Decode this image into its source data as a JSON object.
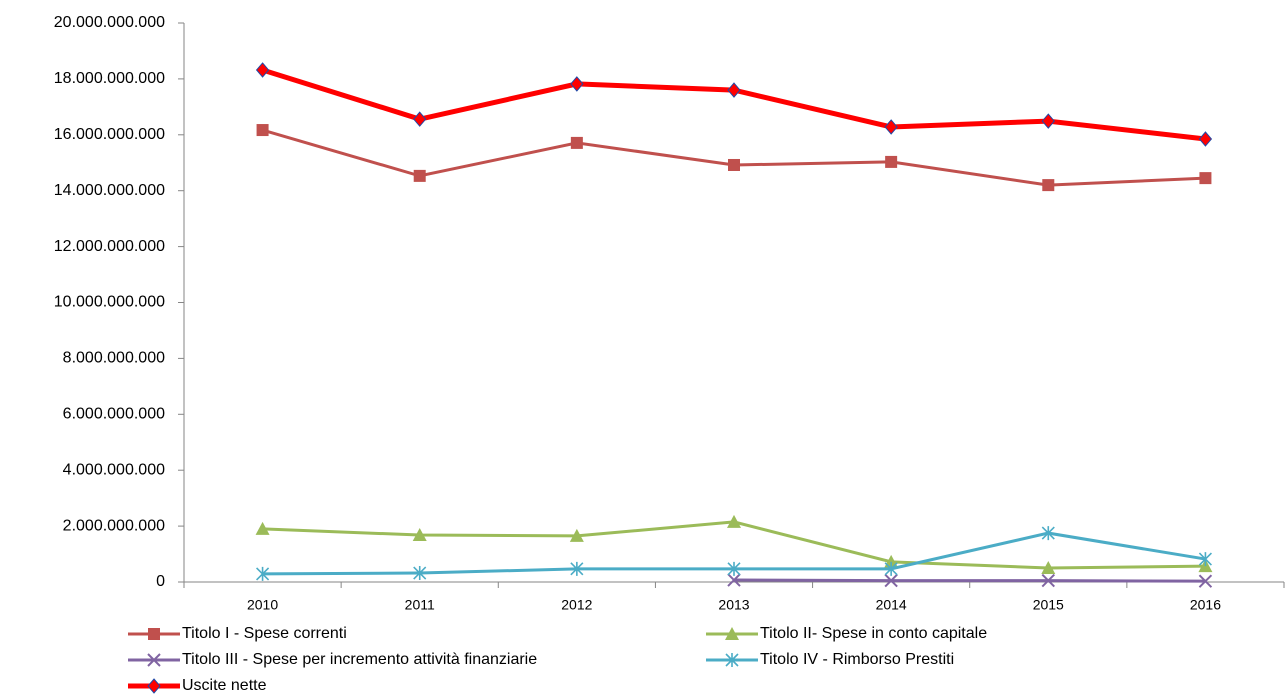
{
  "chart_data": {
    "type": "line",
    "categories": [
      "2010",
      "2011",
      "2012",
      "2013",
      "2014",
      "2015",
      "2016"
    ],
    "ylim": [
      0,
      20000000000
    ],
    "yticks": [
      {
        "value": 0,
        "label": "0"
      },
      {
        "value": 2000000000,
        "label": "2.000.000.000"
      },
      {
        "value": 4000000000,
        "label": "4.000.000.000"
      },
      {
        "value": 6000000000,
        "label": "6.000.000.000"
      },
      {
        "value": 8000000000,
        "label": "8.000.000.000"
      },
      {
        "value": 10000000000,
        "label": "10.000.000.000"
      },
      {
        "value": 12000000000,
        "label": "12.000.000.000"
      },
      {
        "value": 14000000000,
        "label": "14.000.000.000"
      },
      {
        "value": 16000000000,
        "label": "16.000.000.000"
      },
      {
        "value": 18000000000,
        "label": "18.000.000.000"
      },
      {
        "value": 20000000000,
        "label": "20.000.000.000"
      }
    ],
    "grid": false,
    "series": [
      {
        "name": "Titolo I - Spese correnti",
        "color": "#c0504d",
        "marker": "square",
        "values": [
          16170000000,
          14530000000,
          15710000000,
          14920000000,
          15030000000,
          14200000000,
          14450000000
        ]
      },
      {
        "name": "Titolo II- Spese in conto capitale",
        "color": "#9bbb59",
        "marker": "triangle",
        "values": [
          1900000000,
          1680000000,
          1650000000,
          2150000000,
          720000000,
          500000000,
          570000000
        ]
      },
      {
        "name": "Titolo III - Spese per incremento attività finanziarie",
        "color": "#8064a2",
        "marker": "x",
        "values": [
          null,
          null,
          null,
          70000000,
          50000000,
          50000000,
          30000000
        ]
      },
      {
        "name": "Titolo IV - Rimborso Prestiti",
        "color": "#4bacc6",
        "marker": "star",
        "values": [
          290000000,
          320000000,
          470000000,
          470000000,
          470000000,
          1750000000,
          820000000
        ]
      },
      {
        "name": "Uscite nette",
        "color": "#ff0000",
        "marker": "diamond",
        "values": [
          18320000000,
          16560000000,
          17820000000,
          17600000000,
          16280000000,
          16490000000,
          15850000000
        ]
      }
    ]
  }
}
